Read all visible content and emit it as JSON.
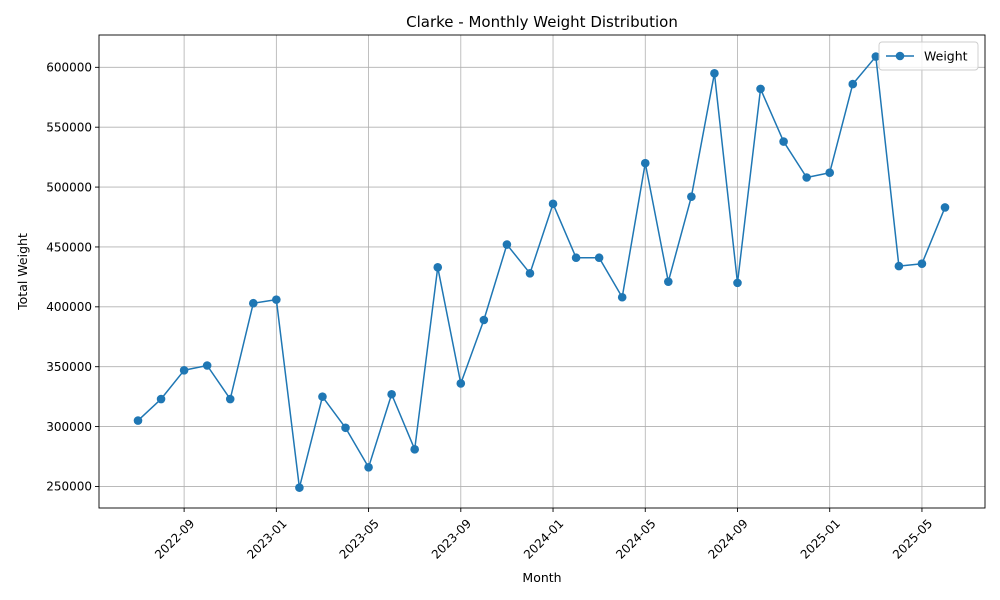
{
  "chart_data": {
    "type": "line",
    "title": "Clarke - Monthly Weight Distribution",
    "xlabel": "Month",
    "ylabel": "Total Weight",
    "grid": true,
    "legend_position": "top-right",
    "x_tick_labels": [
      "2022-09",
      "2023-01",
      "2023-05",
      "2023-09",
      "2024-01",
      "2024-05",
      "2024-09",
      "2025-01",
      "2025-05"
    ],
    "y_ticks": [
      250000,
      300000,
      350000,
      400000,
      450000,
      500000,
      550000,
      600000
    ],
    "y_tick_labels": [
      "250000",
      "300000",
      "350000",
      "400000",
      "450000",
      "500000",
      "550000",
      "600000"
    ],
    "ylim": [
      232000,
      627000
    ],
    "x": [
      "2022-07",
      "2022-08",
      "2022-09",
      "2022-10",
      "2022-11",
      "2022-12",
      "2023-01",
      "2023-02",
      "2023-03",
      "2023-04",
      "2023-05",
      "2023-06",
      "2023-07",
      "2023-08",
      "2023-09",
      "2023-10",
      "2023-11",
      "2023-12",
      "2024-01",
      "2024-02",
      "2024-03",
      "2024-04",
      "2024-05",
      "2024-06",
      "2024-07",
      "2024-08",
      "2024-09",
      "2024-10",
      "2024-11",
      "2024-12",
      "2025-01",
      "2025-02",
      "2025-03",
      "2025-04",
      "2025-05",
      "2025-06"
    ],
    "series": [
      {
        "name": "Weight",
        "color": "#1f77b4",
        "values": [
          305000,
          323000,
          347000,
          351000,
          323000,
          403000,
          406000,
          249000,
          325000,
          299000,
          266000,
          327000,
          281000,
          433000,
          336000,
          389000,
          452000,
          428000,
          486000,
          441000,
          441000,
          408000,
          520000,
          421000,
          492000,
          595000,
          420000,
          582000,
          538000,
          508000,
          512000,
          586000,
          609000,
          434000,
          436000,
          483000
        ]
      }
    ]
  }
}
